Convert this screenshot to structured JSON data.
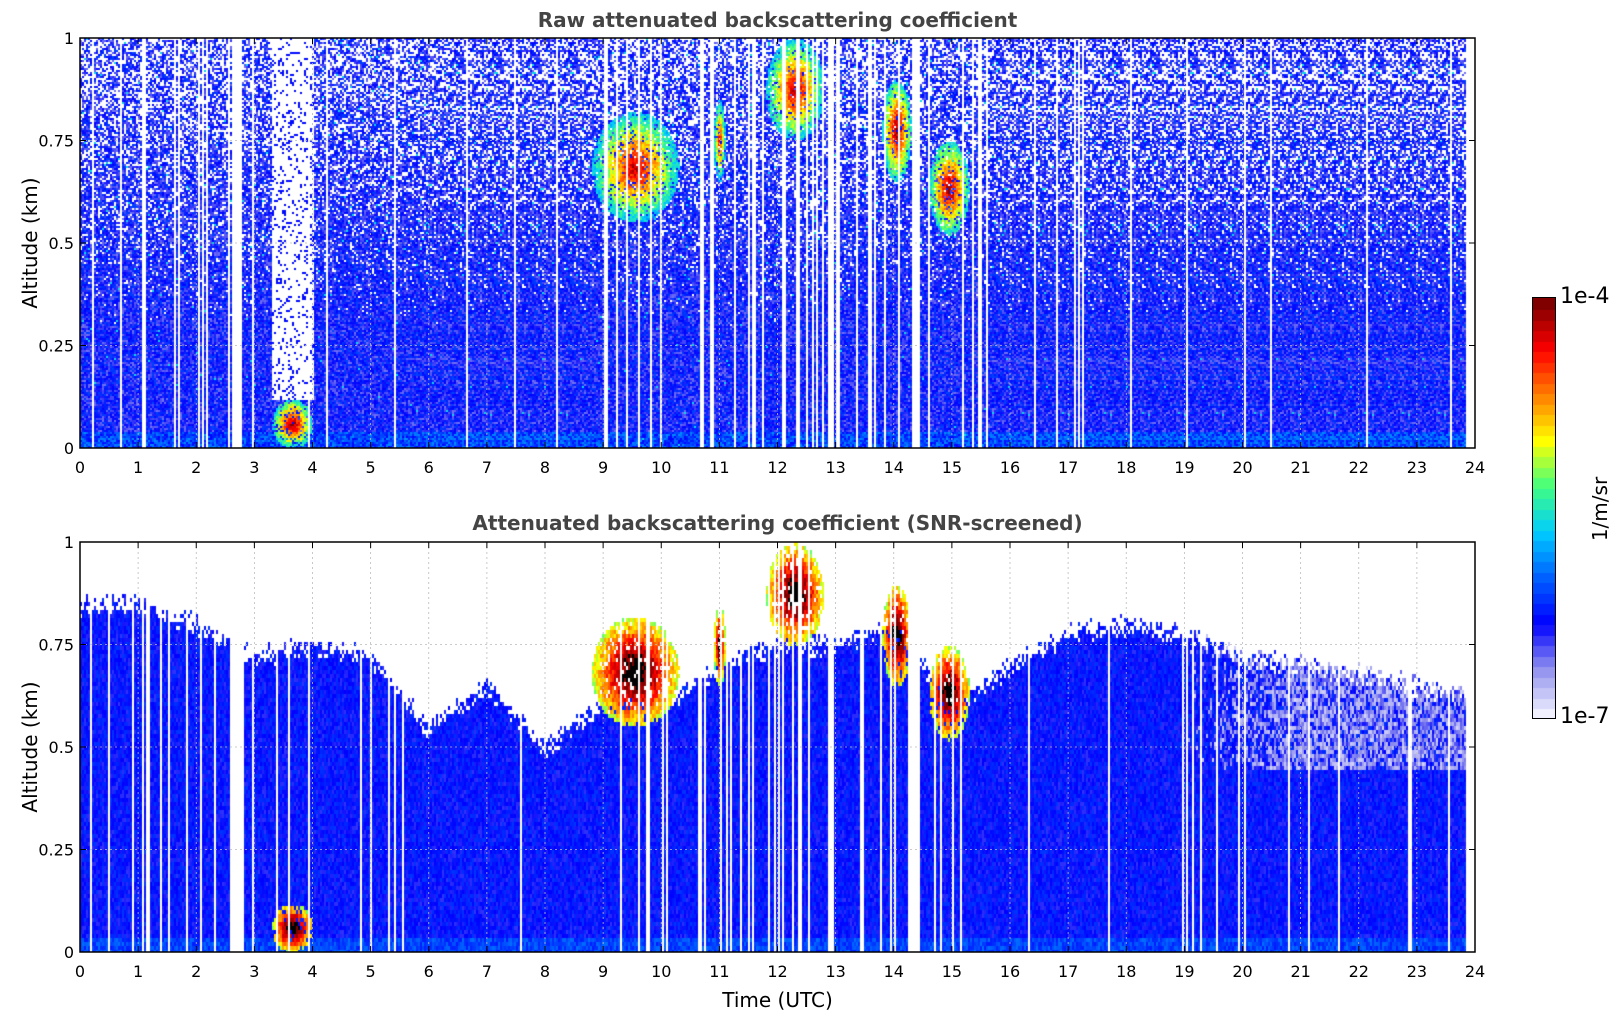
{
  "colorbar": {
    "label": "1/m/sr",
    "max_label": "1e-4",
    "min_label": "1e-7",
    "colormap": [
      "#f0f0ff",
      "#9090ee",
      "#0000ff",
      "#0060ff",
      "#00ccff",
      "#40ff80",
      "#ffff00",
      "#ff8000",
      "#ff0000",
      "#800000"
    ]
  },
  "xlabel": "Time (UTC)",
  "chart_data": [
    {
      "type": "heatmap",
      "title": "Raw attenuated backscattering coefficient",
      "xlabel": "",
      "ylabel": "Altitude (km)",
      "xlim": [
        0,
        24
      ],
      "ylim": [
        0,
        1
      ],
      "x_ticks": [
        "0",
        "1",
        "2",
        "3",
        "4",
        "5",
        "6",
        "7",
        "8",
        "9",
        "10",
        "11",
        "12",
        "13",
        "14",
        "15",
        "16",
        "17",
        "18",
        "19",
        "20",
        "21",
        "22",
        "23",
        "24"
      ],
      "y_ticks": [
        "0",
        "0.25",
        "0.5",
        "0.75",
        "1"
      ],
      "grid": true,
      "colorscale": "log10 1e-7 to 1e-4",
      "data_gaps_hours": [
        [
          2.62,
          2.78
        ],
        [
          12.85,
          12.95
        ],
        [
          14.32,
          14.45
        ],
        [
          23.85,
          24.0
        ]
      ],
      "features": [
        {
          "name": "fog layer",
          "x": [
            3.3,
            4.0
          ],
          "y": [
            0.0,
            0.12
          ],
          "value_log10": -4.0
        },
        {
          "name": "clear slot",
          "x": [
            3.3,
            4.0
          ],
          "y": [
            0.12,
            1.0
          ],
          "value_log10": -7.0
        },
        {
          "name": "cloud 1",
          "x": [
            8.8,
            10.3
          ],
          "y": [
            0.55,
            0.82
          ],
          "value_log10": -4.1
        },
        {
          "name": "cloud 2",
          "x": [
            10.9,
            11.1
          ],
          "y": [
            0.65,
            0.85
          ],
          "value_log10": -4.2
        },
        {
          "name": "cloud 3",
          "x": [
            11.8,
            12.8
          ],
          "y": [
            0.75,
            1.0
          ],
          "value_log10": -4.1
        },
        {
          "name": "cloud 4",
          "x": [
            13.8,
            14.3
          ],
          "y": [
            0.65,
            0.9
          ],
          "value_log10": -4.0
        },
        {
          "name": "cloud 5",
          "x": [
            14.6,
            15.3
          ],
          "y": [
            0.52,
            0.75
          ],
          "value_log10": -4.0
        }
      ]
    },
    {
      "type": "heatmap",
      "title": "Attenuated backscattering coefficient (SNR-screened)",
      "xlabel": "Time (UTC)",
      "ylabel": "Altitude (km)",
      "xlim": [
        0,
        24
      ],
      "ylim": [
        0,
        1
      ],
      "x_ticks": [
        "0",
        "1",
        "2",
        "3",
        "4",
        "5",
        "6",
        "7",
        "8",
        "9",
        "10",
        "11",
        "12",
        "13",
        "14",
        "15",
        "16",
        "17",
        "18",
        "19",
        "20",
        "21",
        "22",
        "23",
        "24"
      ],
      "y_ticks": [
        "0",
        "0.25",
        "0.5",
        "0.75",
        "1"
      ],
      "grid": true,
      "colorscale": "log10 1e-7 to 1e-4",
      "data_gaps_hours": [
        [
          2.62,
          2.78
        ],
        [
          12.85,
          12.95
        ],
        [
          14.32,
          14.45
        ],
        [
          23.85,
          24.0
        ]
      ],
      "screened_top_km": [
        [
          0,
          0.85
        ],
        [
          1,
          0.85
        ],
        [
          2,
          0.8
        ],
        [
          3,
          0.72
        ],
        [
          4,
          0.75
        ],
        [
          5,
          0.72
        ],
        [
          6,
          0.55
        ],
        [
          7,
          0.65
        ],
        [
          8,
          0.5
        ],
        [
          9,
          0.6
        ],
        [
          10,
          0.6
        ],
        [
          11,
          0.7
        ],
        [
          12,
          0.75
        ],
        [
          13,
          0.75
        ],
        [
          14,
          0.8
        ],
        [
          15,
          0.6
        ],
        [
          16,
          0.7
        ],
        [
          17,
          0.78
        ],
        [
          18,
          0.8
        ],
        [
          19,
          0.78
        ],
        [
          20,
          0.72
        ],
        [
          21,
          0.7
        ],
        [
          22,
          0.68
        ],
        [
          23,
          0.65
        ],
        [
          24,
          0.62
        ]
      ],
      "faint_region": {
        "x": [
          19.0,
          24.0
        ],
        "y": [
          0.45,
          0.78
        ]
      },
      "features": [
        {
          "name": "fog layer",
          "x": [
            3.3,
            4.0
          ],
          "y": [
            0.0,
            0.12
          ],
          "value_log10": -3.5
        },
        {
          "name": "cloud 1",
          "x": [
            8.8,
            10.3
          ],
          "y": [
            0.55,
            0.82
          ],
          "value_log10": -3.5
        },
        {
          "name": "cloud 2",
          "x": [
            10.9,
            11.1
          ],
          "y": [
            0.65,
            0.85
          ],
          "value_log10": -3.6
        },
        {
          "name": "cloud 3",
          "x": [
            11.8,
            12.8
          ],
          "y": [
            0.75,
            1.0
          ],
          "value_log10": -3.5
        },
        {
          "name": "cloud 4",
          "x": [
            13.8,
            14.3
          ],
          "y": [
            0.65,
            0.9
          ],
          "value_log10": -3.5
        },
        {
          "name": "cloud 5",
          "x": [
            14.6,
            15.3
          ],
          "y": [
            0.52,
            0.75
          ],
          "value_log10": -3.5
        }
      ]
    }
  ]
}
